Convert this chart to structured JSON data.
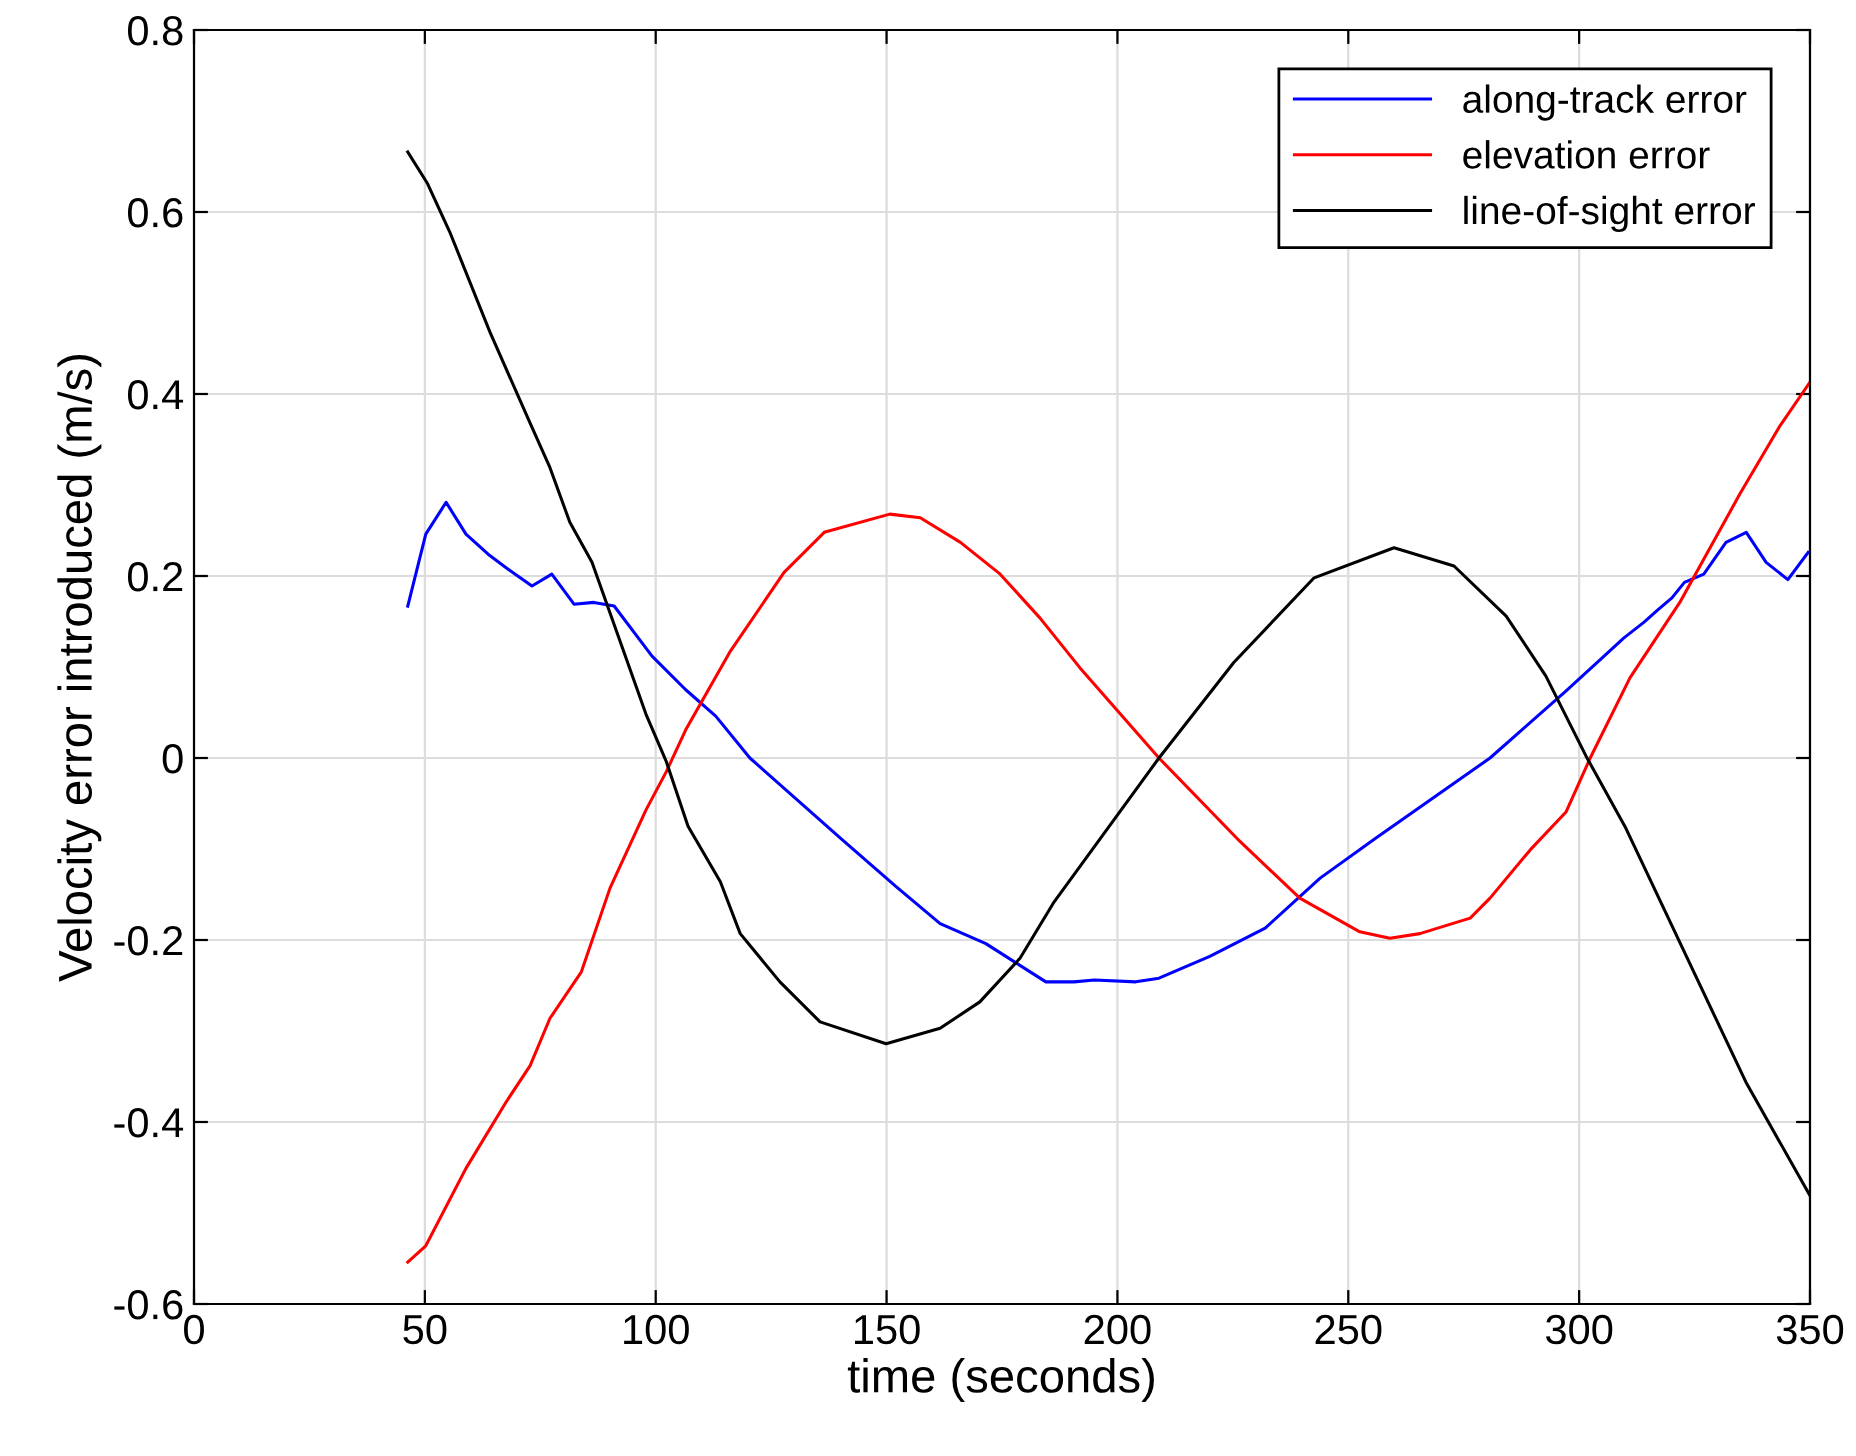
{
  "chart_data": {
    "type": "line",
    "xlabel": "time (seconds)",
    "ylabel": "Velocity error introduced (m/s)",
    "xlim": [
      0,
      350
    ],
    "xticks": [
      0,
      50,
      100,
      150,
      200,
      250,
      300,
      350
    ],
    "ylim": [
      -0.6,
      0.8
    ],
    "yticks": [
      -0.6,
      -0.4,
      -0.2,
      0,
      0.2,
      0.4,
      0.6,
      0.8
    ],
    "grid": true,
    "legend": "top right",
    "line_style": "solid",
    "marker": "none",
    "series": [
      {
        "name": "along-track error",
        "color": "#0000ff",
        "x": [
          46.3,
          50.2,
          54.6,
          58.9,
          63.7,
          67.6,
          73.2,
          77.5,
          82.3,
          86.6,
          91,
          99.2,
          106.5,
          113,
          120.4,
          140,
          152,
          161.6,
          171.5,
          184.5,
          190.6,
          195,
          204,
          209,
          220,
          232,
          243.9,
          256,
          280.7,
          297,
          305.4,
          309.7,
          314,
          317.1,
          320.1,
          322.8,
          327,
          331.8,
          336.2,
          340.5,
          345.2,
          349.6
        ],
        "values": [
          0.167,
          0.246,
          0.281,
          0.246,
          0.224,
          0.209,
          0.189,
          0.202,
          0.169,
          0.171,
          0.167,
          0.112,
          0.075,
          0.046,
          0,
          -0.088,
          -0.141,
          -0.182,
          -0.204,
          -0.246,
          -0.246,
          -0.244,
          -0.246,
          -0.242,
          -0.218,
          -0.187,
          -0.132,
          -0.088,
          0,
          0.073,
          0.112,
          0.132,
          0.149,
          0.163,
          0.176,
          0.193,
          0.202,
          0.237,
          0.248,
          0.215,
          0.196,
          0.226
        ]
      },
      {
        "name": "elevation error",
        "color": "#ff0000",
        "x": [
          46.3,
          50.2,
          58.9,
          67.6,
          72.8,
          77.1,
          83.9,
          90.1,
          97.9,
          102.3,
          106.5,
          116,
          127.8,
          136.5,
          150.7,
          157.3,
          166,
          174.6,
          183.2,
          191.9,
          209,
          226.6,
          239.5,
          252.5,
          259,
          265.5,
          276.4,
          280.7,
          289.4,
          297.2,
          302.4,
          311,
          321.8,
          334.8,
          343.5,
          350
        ],
        "values": [
          -0.554,
          -0.536,
          -0.451,
          -0.378,
          -0.338,
          -0.286,
          -0.235,
          -0.143,
          -0.057,
          -0.015,
          0.031,
          0.116,
          0.204,
          0.248,
          0.268,
          0.264,
          0.237,
          0.202,
          0.154,
          0.099,
          0,
          -0.092,
          -0.154,
          -0.191,
          -0.198,
          -0.193,
          -0.176,
          -0.154,
          -0.101,
          -0.059,
          0,
          0.088,
          0.171,
          0.29,
          0.365,
          0.413
        ]
      },
      {
        "name": "line-of-sight error",
        "color": "#000000",
        "x": [
          46.3,
          50.6,
          55.4,
          64.1,
          72.7,
          77.1,
          81.4,
          86.2,
          97.9,
          102.3,
          107,
          114,
          118.3,
          126.9,
          135.6,
          149.9,
          161.6,
          170.2,
          178.9,
          186.3,
          209,
          225.2,
          242.6,
          259.9,
          272.9,
          284.2,
          292.8,
          301.5,
          310.1,
          336.1,
          350
        ],
        "values": [
          0.666,
          0.631,
          0.578,
          0.468,
          0.369,
          0.319,
          0.259,
          0.215,
          0.048,
          -0.004,
          -0.075,
          -0.136,
          -0.193,
          -0.246,
          -0.29,
          -0.314,
          -0.297,
          -0.268,
          -0.22,
          -0.158,
          0,
          0.105,
          0.198,
          0.231,
          0.211,
          0.156,
          0.09,
          0.002,
          -0.077,
          -0.356,
          -0.481
        ]
      }
    ]
  }
}
